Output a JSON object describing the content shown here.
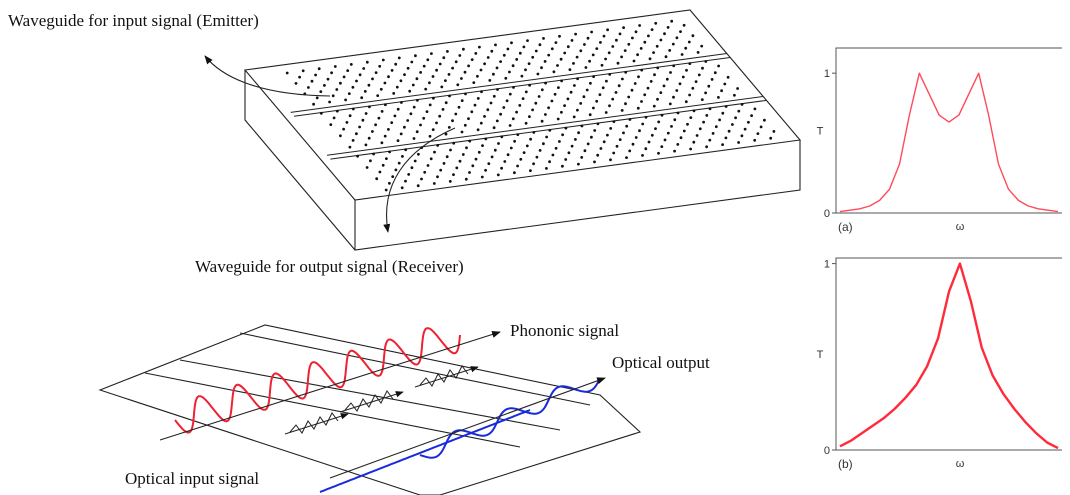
{
  "top_diagram": {
    "labels": {
      "emitter": "Waveguide for input signal (Emitter)",
      "receiver": "Waveguide for output signal (Receiver)"
    }
  },
  "bottom_diagram": {
    "labels": {
      "phononic": "Phononic signal",
      "optical_output": "Optical output",
      "optical_input": "Optical input signal"
    }
  },
  "plots": [
    {
      "panel": "(a)",
      "ylabel": "T",
      "xlabel": "ω",
      "ylim": [
        0,
        1.18
      ],
      "yticks": [
        0,
        1
      ],
      "color": "#ff4a5a",
      "values": [
        0.01,
        0.02,
        0.03,
        0.05,
        0.09,
        0.17,
        0.35,
        0.7,
        1.0,
        0.85,
        0.7,
        0.65,
        0.7,
        0.85,
        1.0,
        0.7,
        0.35,
        0.17,
        0.09,
        0.05,
        0.03,
        0.02,
        0.01
      ]
    },
    {
      "panel": "(b)",
      "ylabel": "T",
      "xlabel": "ω",
      "ylim": [
        0,
        1.03
      ],
      "yticks": [
        0,
        1
      ],
      "color": "#ff2a3a",
      "values": [
        0.02,
        0.05,
        0.09,
        0.13,
        0.17,
        0.22,
        0.28,
        0.35,
        0.45,
        0.6,
        0.85,
        1.0,
        0.8,
        0.55,
        0.4,
        0.3,
        0.22,
        0.15,
        0.09,
        0.04,
        0.01
      ]
    }
  ]
}
